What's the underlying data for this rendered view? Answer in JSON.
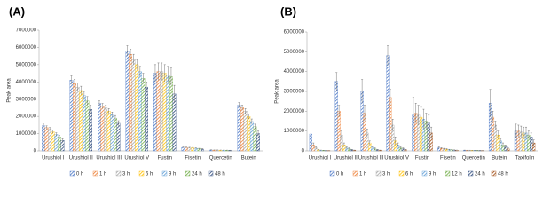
{
  "chart_data": [
    {
      "type": "bar",
      "label": "(A)",
      "ylabel": "Peak area",
      "categories": [
        "Urushiol I",
        "Urushiol II",
        "Urushiol III",
        "Urushiol V",
        "Fustin",
        "Fisetin",
        "Quercetin",
        "Butein"
      ],
      "ylim": [
        0,
        7000000
      ],
      "yticks": [
        0,
        1000000,
        2000000,
        3000000,
        4000000,
        5000000,
        6000000,
        7000000
      ],
      "series": [
        {
          "name": "0 h",
          "color": "#4472c4",
          "values": [
            1450000,
            4100000,
            2750000,
            5800000,
            4500000,
            200000,
            50000,
            2650000
          ],
          "errors": [
            100000,
            250000,
            150000,
            300000,
            500000,
            30000,
            10000,
            150000
          ]
        },
        {
          "name": "1 h",
          "color": "#ed7d31",
          "values": [
            1350000,
            3900000,
            2600000,
            5600000,
            4600000,
            190000,
            45000,
            2500000
          ],
          "errors": [
            100000,
            250000,
            150000,
            300000,
            500000,
            30000,
            10000,
            150000
          ]
        },
        {
          "name": "3 h",
          "color": "#a5a5a5",
          "values": [
            1250000,
            3700000,
            2500000,
            5300000,
            4600000,
            180000,
            45000,
            2300000
          ],
          "errors": [
            100000,
            250000,
            150000,
            300000,
            500000,
            30000,
            10000,
            150000
          ]
        },
        {
          "name": "6 h",
          "color": "#ffc000",
          "values": [
            1100000,
            3500000,
            2300000,
            5000000,
            4500000,
            170000,
            40000,
            2000000
          ],
          "errors": [
            100000,
            250000,
            150000,
            300000,
            500000,
            30000,
            10000,
            150000
          ]
        },
        {
          "name": "9 h",
          "color": "#5b9bd5",
          "values": [
            950000,
            3200000,
            2100000,
            4600000,
            4400000,
            150000,
            40000,
            1700000
          ],
          "errors": [
            100000,
            250000,
            150000,
            300000,
            500000,
            30000,
            10000,
            150000
          ]
        },
        {
          "name": "24 h",
          "color": "#70ad47",
          "values": [
            800000,
            2900000,
            1900000,
            4200000,
            4300000,
            120000,
            35000,
            1400000
          ],
          "errors": [
            100000,
            250000,
            150000,
            300000,
            500000,
            30000,
            10000,
            150000
          ]
        },
        {
          "name": "48 h",
          "color": "#264478",
          "values": [
            600000,
            2400000,
            1600000,
            3700000,
            3300000,
            100000,
            30000,
            1000000
          ],
          "errors": [
            100000,
            250000,
            150000,
            300000,
            500000,
            30000,
            10000,
            150000
          ]
        }
      ]
    },
    {
      "type": "bar",
      "label": "(B)",
      "ylabel": "Peak area",
      "categories": [
        "Urushiol I",
        "Urushiol II",
        "Urushiol III",
        "Urushiol V",
        "Fustin",
        "Fisetin",
        "Quercetin",
        "Butein",
        "Taxifolin"
      ],
      "ylim": [
        0,
        6000000
      ],
      "yticks": [
        0,
        1000000,
        2000000,
        3000000,
        4000000,
        5000000,
        6000000
      ],
      "series": [
        {
          "name": "0 h",
          "color": "#4472c4",
          "values": [
            850000,
            3500000,
            3000000,
            4800000,
            1800000,
            150000,
            30000,
            2400000,
            1000000
          ],
          "errors": [
            200000,
            450000,
            600000,
            500000,
            900000,
            50000,
            10000,
            700000,
            350000
          ]
        },
        {
          "name": "1 h",
          "color": "#ed7d31",
          "values": [
            300000,
            2000000,
            1900000,
            2700000,
            1900000,
            120000,
            25000,
            1700000,
            1000000
          ],
          "errors": [
            100000,
            300000,
            400000,
            400000,
            500000,
            40000,
            10000,
            300000,
            300000
          ]
        },
        {
          "name": "3 h",
          "color": "#a5a5a5",
          "values": [
            150000,
            800000,
            900000,
            1300000,
            1800000,
            100000,
            25000,
            1300000,
            950000
          ],
          "errors": [
            50000,
            200000,
            200000,
            300000,
            500000,
            30000,
            10000,
            200000,
            300000
          ]
        },
        {
          "name": "6 h",
          "color": "#ffc000",
          "values": [
            50000,
            300000,
            400000,
            500000,
            1700000,
            80000,
            20000,
            800000,
            900000
          ],
          "errors": [
            20000,
            100000,
            100000,
            200000,
            500000,
            30000,
            10000,
            200000,
            300000
          ]
        },
        {
          "name": "9 h",
          "color": "#5b9bd5",
          "values": [
            30000,
            150000,
            200000,
            300000,
            1600000,
            60000,
            20000,
            500000,
            900000
          ],
          "errors": [
            10000,
            50000,
            50000,
            100000,
            500000,
            20000,
            10000,
            100000,
            300000
          ]
        },
        {
          "name": "12 h",
          "color": "#70ad47",
          "values": [
            20000,
            100000,
            100000,
            150000,
            1500000,
            50000,
            15000,
            300000,
            800000
          ],
          "errors": [
            10000,
            50000,
            50000,
            50000,
            400000,
            20000,
            10000,
            100000,
            200000
          ]
        },
        {
          "name": "24 h",
          "color": "#264478",
          "values": [
            10000,
            50000,
            50000,
            100000,
            1400000,
            40000,
            15000,
            200000,
            700000
          ],
          "errors": [
            5000,
            20000,
            20000,
            50000,
            400000,
            10000,
            5000,
            100000,
            200000
          ]
        },
        {
          "name": "48 h",
          "color": "#9e480e",
          "values": [
            10000,
            30000,
            30000,
            50000,
            900000,
            30000,
            10000,
            100000,
            400000
          ],
          "errors": [
            5000,
            10000,
            10000,
            20000,
            300000,
            10000,
            5000,
            50000,
            150000
          ]
        }
      ]
    }
  ]
}
